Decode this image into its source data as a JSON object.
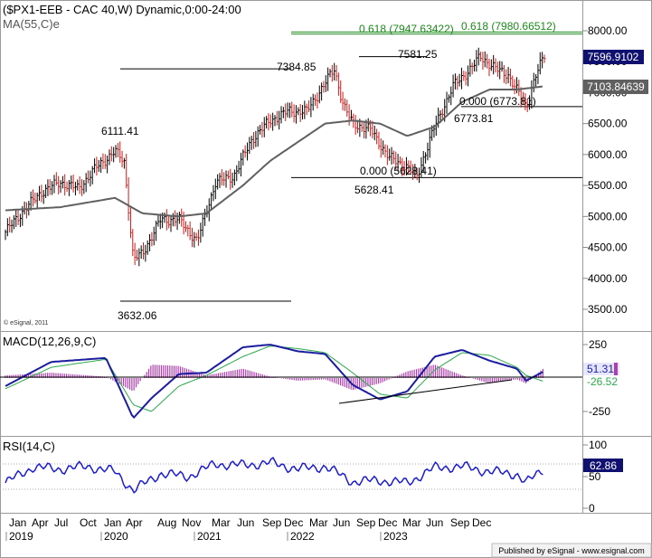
{
  "header": {
    "title": "($PX1-EEB - CAC 40,W) Dynamic,0:00-24:00",
    "ma_label": "MA(55,C)e",
    "copyright": "© eSignal, 2011",
    "publisher": "Published by eSignal - www.esignal.com"
  },
  "price_panel": {
    "yaxis_ticks": [
      "8000.00",
      "7500.00",
      "7000.00",
      "6500.00",
      "6000.00",
      "5500.00",
      "5000.00",
      "4500.00",
      "4000.00",
      "3500.00"
    ],
    "last_price_tag": "7596.9102",
    "ma_tag": "7103.84639",
    "fib_labels": [
      {
        "text": "0.618 (7947.63422)",
        "color": "#1a8a1a"
      },
      {
        "text": "0.618 (7980.66512)",
        "color": "#1a8a1a"
      }
    ],
    "level_labels": [
      {
        "text": "7581.25"
      },
      {
        "text": "7384.85"
      },
      {
        "text": "6111.41"
      },
      {
        "text": "0.000 (6773.81)"
      },
      {
        "text": "6773.81"
      },
      {
        "text": "0.000 (5628.41)"
      },
      {
        "text": "5628.41"
      },
      {
        "text": "3632.06"
      }
    ]
  },
  "macd_panel": {
    "label": "MACD(12,26,9,C)",
    "yaxis_ticks": [
      "250",
      "-250"
    ],
    "macd_tag": "51.31",
    "signal_tag": "-26.52"
  },
  "rsi_panel": {
    "label": "RSI(14,C)",
    "yaxis_ticks": [
      "100",
      "50",
      "0"
    ],
    "rsi_tag": "62.86"
  },
  "xaxis": {
    "months": [
      "Jan",
      "Apr",
      "Jul",
      "Oct",
      "Jan",
      "Apr",
      "Aug",
      "Nov",
      "Mar",
      "Jun",
      "Sep",
      "Dec",
      "Mar",
      "Jun",
      "Sep",
      "Dec",
      "Mar",
      "Jun",
      "Sep",
      "Dec"
    ],
    "years": [
      "2019",
      "2020",
      "2021",
      "2022",
      "2023"
    ]
  },
  "colors": {
    "price_up": "#000000",
    "price_down": "#d01818",
    "ma": "#606060",
    "macd": "#1c1ca0",
    "signal": "#2aa84a",
    "histogram": "#b040b0",
    "rsi": "#1c1cd0",
    "fib": "#1a8a1a"
  },
  "chart_data": {
    "type": "line",
    "title": "($PX1-EEB - CAC 40,W) Dynamic,0:00-24:00",
    "ylim": [
      3000,
      8300
    ],
    "series": [
      {
        "name": "$PX1-EEB",
        "x": [
          "2019-01",
          "2019-03",
          "2019-05",
          "2019-07",
          "2019-09",
          "2019-11",
          "2020-01",
          "2020-02",
          "2020-03",
          "2020-04",
          "2020-06",
          "2020-08",
          "2020-10",
          "2020-12",
          "2021-02",
          "2021-04",
          "2021-06",
          "2021-08",
          "2021-10",
          "2021-12",
          "2022-01",
          "2022-02",
          "2022-03",
          "2022-05",
          "2022-07",
          "2022-09",
          "2022-10",
          "2022-12",
          "2023-02",
          "2023-04",
          "2023-05",
          "2023-07",
          "2023-08",
          "2023-10",
          "2023-11",
          "2023-12"
        ],
        "values": [
          4750,
          5100,
          5400,
          5550,
          5450,
          5800,
          6050,
          5900,
          4300,
          4400,
          4950,
          4950,
          4600,
          5550,
          5650,
          6250,
          6550,
          6700,
          6700,
          7150,
          7384.85,
          6800,
          6500,
          6400,
          5950,
          5800,
          5628.41,
          6450,
          7100,
          7400,
          7581.25,
          7350,
          7300,
          6773.81,
          7250,
          7596.91
        ]
      },
      {
        "name": "MA(55,C)e",
        "x": [
          "2019-01",
          "2019-07",
          "2020-01",
          "2020-04",
          "2020-08",
          "2020-11",
          "2021-03",
          "2021-06",
          "2021-09",
          "2021-12",
          "2022-03",
          "2022-06",
          "2022-09",
          "2022-12",
          "2023-03",
          "2023-06",
          "2023-09",
          "2023-12"
        ],
        "values": [
          5100,
          5150,
          5300,
          5050,
          5000,
          5050,
          5500,
          5900,
          6200,
          6500,
          6550,
          6500,
          6300,
          6450,
          6850,
          7050,
          7050,
          7103.85
        ]
      }
    ],
    "horizontal_levels": [
      7947.63,
      7980.67,
      7581.25,
      7384.85,
      6773.81,
      5628.41,
      3632.06
    ],
    "macd": {
      "name": "MACD(12,26,9,C)",
      "ylim": [
        -400,
        300
      ],
      "x": [
        "2019-01",
        "2019-06",
        "2019-12",
        "2020-03",
        "2020-05",
        "2020-08",
        "2020-11",
        "2021-03",
        "2021-06",
        "2021-09",
        "2021-12",
        "2022-03",
        "2022-06",
        "2022-09",
        "2022-12",
        "2023-03",
        "2023-06",
        "2023-09",
        "2023-10",
        "2023-12"
      ],
      "macd": [
        -60,
        120,
        150,
        -300,
        -150,
        30,
        40,
        230,
        250,
        200,
        180,
        -50,
        -160,
        -100,
        160,
        210,
        130,
        70,
        -20,
        51.31
      ],
      "signal": [
        -80,
        80,
        140,
        -200,
        -250,
        -60,
        20,
        160,
        240,
        220,
        190,
        40,
        -120,
        -150,
        60,
        190,
        170,
        80,
        20,
        -26.52
      ]
    },
    "rsi": {
      "name": "RSI(14,C)",
      "ylim": [
        0,
        100
      ],
      "x": [
        "2019-01",
        "2019-04",
        "2019-07",
        "2019-10",
        "2020-01",
        "2020-03",
        "2020-06",
        "2020-09",
        "2020-12",
        "2021-03",
        "2021-06",
        "2021-09",
        "2021-12",
        "2022-03",
        "2022-06",
        "2022-09",
        "2022-12",
        "2023-03",
        "2023-06",
        "2023-09",
        "2023-10",
        "2023-12"
      ],
      "values": [
        40,
        65,
        62,
        66,
        58,
        28,
        55,
        50,
        70,
        68,
        72,
        62,
        66,
        42,
        44,
        40,
        64,
        66,
        58,
        54,
        40,
        62.86
      ]
    }
  }
}
